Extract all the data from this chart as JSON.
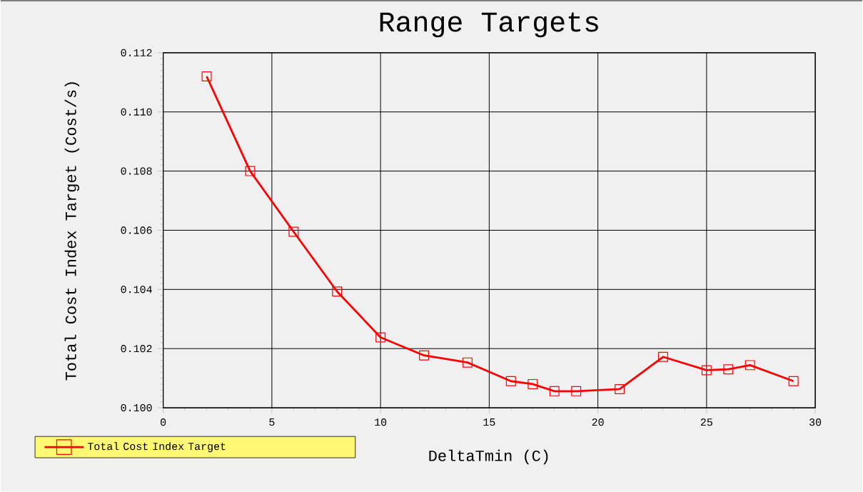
{
  "chart_data": {
    "type": "line",
    "title": "Range Targets",
    "xlabel": "DeltaTmin (C)",
    "ylabel": "Total Cost Index Target (Cost/s)",
    "x": [
      2,
      4,
      6,
      8,
      10,
      12,
      14,
      16,
      17,
      18,
      19,
      21,
      23,
      25,
      26,
      27,
      29
    ],
    "series": [
      {
        "name": "Total Cost Index Target",
        "color": "#ff0000",
        "values": [
          0.1112,
          0.108,
          0.10595,
          0.10393,
          0.10238,
          0.10177,
          0.10153,
          0.1009,
          0.1008,
          0.10056,
          0.10056,
          0.10063,
          0.10172,
          0.10127,
          0.1013,
          0.10144,
          0.1009
        ]
      }
    ],
    "xlim": [
      0,
      30
    ],
    "xticks": [
      0,
      5,
      10,
      15,
      20,
      25,
      30
    ],
    "ylim": [
      0.1,
      0.112
    ],
    "yticks": [
      {
        "value": 0.1,
        "label": "0.100"
      },
      {
        "value": 0.102,
        "label": "0.102"
      },
      {
        "value": 0.104,
        "label": "0.104"
      },
      {
        "value": 0.106,
        "label": "0.106"
      },
      {
        "value": 0.108,
        "label": "0.108"
      },
      {
        "value": 0.11,
        "label": "0.110"
      },
      {
        "value": 0.112,
        "label": "0.112"
      }
    ],
    "grid": true,
    "legend": "bottom left",
    "marker": "square",
    "line_style": "solid"
  }
}
